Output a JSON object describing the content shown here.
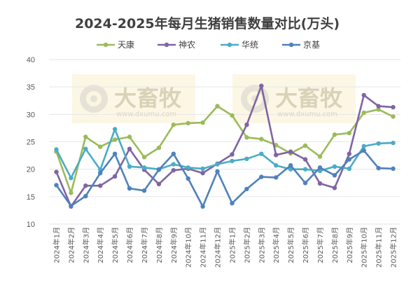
{
  "chart_data": {
    "type": "line",
    "title": "2024-2025年每月生猪销售数量对比(万头)",
    "xlabel": "",
    "ylabel": "",
    "ylim": [
      10,
      40
    ],
    "yticks": [
      10,
      15,
      20,
      25,
      30,
      35,
      40
    ],
    "grid": true,
    "legend_position": "top-center",
    "categories": [
      "2024年1月",
      "2024年2月",
      "2024年3月",
      "2024年4月",
      "2024年5月",
      "2024年6月",
      "2024年7月",
      "2024年8月",
      "2024年9月",
      "2024年10月",
      "2024年11月",
      "2024年12月",
      "2025年1月",
      "2025年2月",
      "2025年3月",
      "2025年4月",
      "2025年5月",
      "2025年6月",
      "2025年7月",
      "2025年8月",
      "2025年9月",
      "2025年10月",
      "2025年11月",
      "2025年12月"
    ],
    "series": [
      {
        "name": "天康",
        "color": "#9bbb59",
        "values": [
          23.2,
          15.7,
          25.9,
          24.1,
          25.4,
          25.9,
          22.2,
          23.9,
          28.1,
          28.4,
          28.5,
          31.5,
          29.8,
          25.8,
          25.5,
          24.4,
          22.9,
          24.3,
          22.3,
          26.3,
          26.6,
          30.3,
          30.9,
          29.6
        ]
      },
      {
        "name": "神农",
        "color": "#8064a2",
        "values": [
          19.5,
          13.2,
          17.0,
          17.0,
          18.7,
          23.7,
          19.9,
          17.3,
          19.8,
          20.1,
          19.3,
          21.0,
          22.7,
          28.1,
          35.2,
          22.6,
          23.2,
          21.8,
          17.4,
          16.6,
          22.8,
          33.5,
          31.5,
          31.3
        ]
      },
      {
        "name": "华统",
        "color": "#4bacc6",
        "values": [
          23.6,
          18.4,
          23.7,
          19.9,
          27.3,
          20.5,
          20.3,
          20.0,
          20.9,
          20.3,
          20.1,
          20.9,
          21.5,
          21.9,
          22.8,
          20.7,
          20.0,
          20.0,
          19.7,
          20.5,
          20.1,
          24.2,
          24.7,
          24.8
        ]
      },
      {
        "name": "京基",
        "color": "#4f81bd",
        "values": [
          17.1,
          13.3,
          15.1,
          19.3,
          22.8,
          16.5,
          16.1,
          19.9,
          22.8,
          18.3,
          13.2,
          19.6,
          13.8,
          16.4,
          18.6,
          18.5,
          20.7,
          17.5,
          20.3,
          18.9,
          21.8,
          23.4,
          20.2,
          20.1
        ]
      }
    ]
  },
  "watermark": {
    "brand": "大畜牧",
    "url": "www.dxumu.com"
  }
}
